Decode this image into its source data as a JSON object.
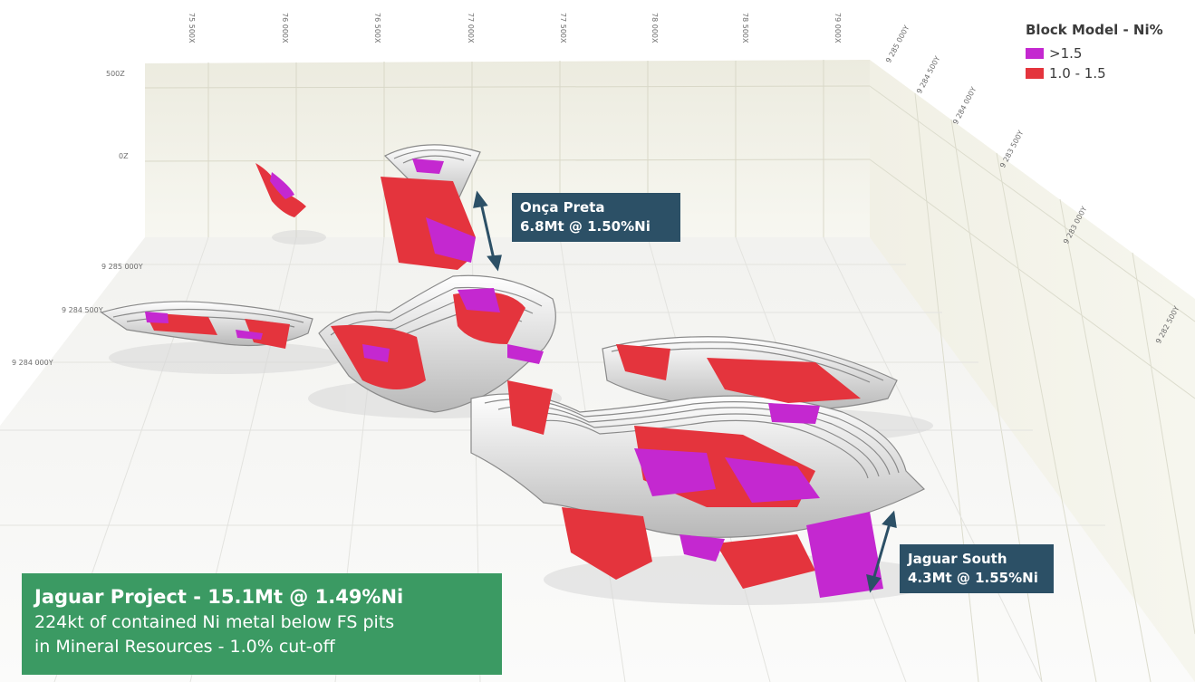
{
  "legend": {
    "title": "Block Model - Ni%",
    "items": [
      {
        "label": ">1.5",
        "color": "#c428d0"
      },
      {
        "label": "1.0 - 1.5",
        "color": "#e4343d"
      }
    ]
  },
  "axes": {
    "x_ticks": [
      "75 500X",
      "76 000X",
      "76 500X",
      "77 000X",
      "77 500X",
      "78 000X",
      "78 500X",
      "79 000X"
    ],
    "z_ticks": [
      "500Z",
      "0Z"
    ],
    "y_left_ticks": [
      "9 285 000Y",
      "9 284 500Y",
      "9 284 000Y"
    ],
    "y_right_ticks": [
      "9 285 000Y",
      "9 284 500Y",
      "9 284 000Y",
      "9 283 500Y",
      "9 283 000Y",
      "9 282 500Y"
    ]
  },
  "callouts": {
    "onca_preta": {
      "name": "Onça Preta",
      "value": "6.8Mt @ 1.50%Ni"
    },
    "jaguar_south": {
      "name": "Jaguar South",
      "value": "4.3Mt @ 1.55%Ni"
    }
  },
  "summary": {
    "title": "Jaguar Project - 15.1Mt @ 1.49%Ni",
    "line1": "224kt of contained Ni metal below FS pits",
    "line2": "in Mineral Resources - 1.0% cut-off"
  },
  "colors": {
    "high_grade": "#c428d0",
    "mid_grade": "#e4343d",
    "callout_bg": "#2c5066",
    "summary_bg": "#3b9a63"
  }
}
